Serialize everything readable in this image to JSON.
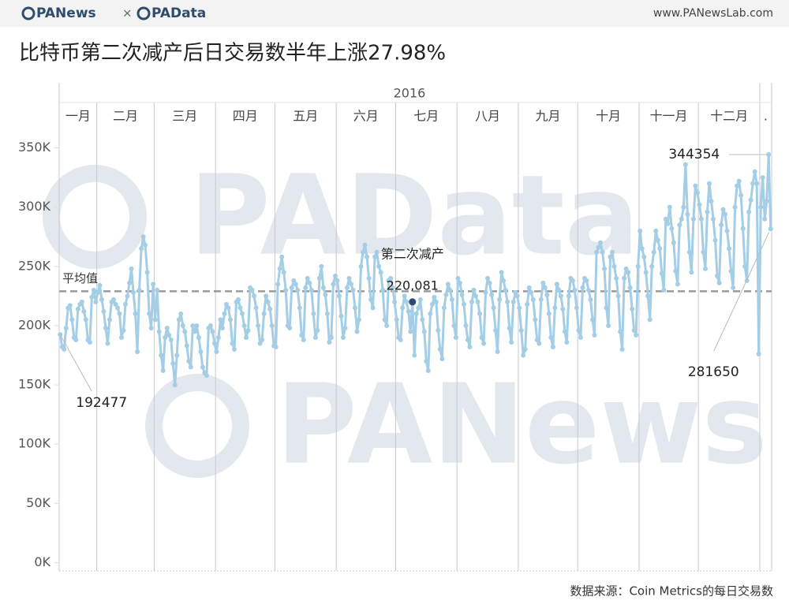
{
  "header": {
    "logo_left": "PANews",
    "separator": "×",
    "logo_right": "PAData",
    "url": "www.PANewsLab.com"
  },
  "chart_data": {
    "type": "line",
    "title": "比特币第二次减产后日交易数半年上涨27.98%",
    "year": "2016",
    "color": "#a4cde6",
    "ylim": [
      -7000,
      365000
    ],
    "yticks": [
      {
        "value": 0,
        "label": "0K"
      },
      {
        "value": 50000,
        "label": "50K"
      },
      {
        "value": 100000,
        "label": "100K"
      },
      {
        "value": 150000,
        "label": "150K"
      },
      {
        "value": 200000,
        "label": "200K"
      },
      {
        "value": 250000,
        "label": "250K"
      },
      {
        "value": 300000,
        "label": "300K"
      },
      {
        "value": 350000,
        "label": "350K"
      }
    ],
    "average": {
      "label": "平均值",
      "value": 229000,
      "color": "#9a9a9a"
    },
    "watermarks": [
      "PAData",
      "PANews"
    ],
    "months": [
      {
        "label": "一月",
        "values": [
          192477,
          182000,
          180000,
          198000,
          215000,
          217000,
          205000,
          190000,
          188000,
          214000,
          218000,
          220000,
          212000,
          205000,
          188000,
          186000,
          224000,
          230000,
          220000
        ],
        "value_labels": [
          "192477",
          null,
          null,
          null,
          null,
          null,
          null,
          null,
          null,
          null,
          null,
          null,
          null,
          null,
          null,
          null,
          null,
          null,
          null
        ]
      },
      {
        "label": "二月",
        "values": [
          228000,
          234000,
          222000,
          212000,
          198000,
          185000,
          205000,
          220000,
          222000,
          218000,
          215000,
          210000,
          190000,
          196000,
          218000,
          225000,
          236000,
          248000,
          228000,
          210000,
          178000,
          230000,
          265000,
          275000,
          268000,
          245000,
          210000,
          198000,
          235000
        ]
      },
      {
        "label": "三月",
        "values": [
          205000,
          230000,
          195000,
          175000,
          162000,
          190000,
          198000,
          192000,
          188000,
          168000,
          150000,
          175000,
          205000,
          210000,
          200000,
          195000,
          183000,
          170000,
          165000,
          200000,
          195000,
          200000,
          190000,
          178000,
          165000,
          160000,
          158000,
          198000,
          200000,
          195000,
          185000
        ]
      },
      {
        "label": "四月",
        "values": [
          178000,
          190000,
          205000,
          198000,
          210000,
          218000,
          215000,
          205000,
          185000,
          180000,
          220000,
          222000,
          215000,
          210000,
          200000,
          190000,
          196000,
          232000,
          230000,
          225000,
          215000,
          200000,
          185000,
          188000,
          210000,
          225000,
          220000,
          214000,
          200000,
          183000
        ]
      },
      {
        "label": "五月",
        "values": [
          182000,
          235000,
          248000,
          258000,
          245000,
          230000,
          200000,
          198000,
          232000,
          238000,
          235000,
          230000,
          215000,
          192000,
          188000,
          232000,
          240000,
          236000,
          230000,
          210000,
          190000,
          196000,
          240000,
          250000,
          232000,
          226000,
          210000,
          186000,
          190000,
          235000,
          242000
        ]
      },
      {
        "label": "六月",
        "values": [
          238000,
          225000,
          208000,
          190000,
          198000,
          232000,
          240000,
          235000,
          230000,
          215000,
          195000,
          205000,
          250000,
          262000,
          268000,
          258000,
          240000,
          222000,
          215000,
          258000,
          262000,
          250000,
          245000,
          230000,
          205000,
          200000,
          238000,
          240000,
          232000,
          220000
        ]
      },
      {
        "label": "七月",
        "annotation": "第二次减产",
        "annotation_color": "#2c4a72",
        "values": [
          205000,
          190000,
          188000,
          215000,
          225000,
          220000,
          212000,
          195000,
          220081,
          175000,
          210000,
          215000,
          222000,
          205000,
          195000,
          170000,
          162000,
          210000,
          218000,
          224000,
          220000,
          196000,
          180000,
          172000,
          215000,
          226000,
          235000,
          230000,
          222000,
          200000,
          190000
        ],
        "value_labels": [
          null,
          null,
          null,
          null,
          null,
          null,
          null,
          null,
          "220,081",
          null,
          null,
          null,
          null,
          null,
          null,
          null,
          null,
          null,
          null,
          null,
          null,
          null,
          null,
          null,
          null,
          null,
          null,
          null,
          null,
          null,
          null
        ]
      },
      {
        "label": "八月",
        "values": [
          240000,
          236000,
          226000,
          218000,
          200000,
          188000,
          182000,
          220000,
          230000,
          225000,
          220000,
          210000,
          190000,
          185000,
          228000,
          240000,
          236000,
          226000,
          215000,
          196000,
          178000,
          222000,
          245000,
          238000,
          230000,
          220000,
          198000,
          186000,
          220000,
          228000,
          225000
        ]
      },
      {
        "label": "九月",
        "values": [
          215000,
          196000,
          175000,
          180000,
          218000,
          232000,
          228000,
          222000,
          205000,
          188000,
          185000,
          222000,
          236000,
          232000,
          226000,
          210000,
          190000,
          182000,
          215000,
          235000,
          230000,
          225000,
          214000,
          195000,
          186000,
          225000,
          240000,
          238000,
          230000,
          215000
        ]
      },
      {
        "label": "十月",
        "values": [
          196000,
          190000,
          232000,
          240000,
          238000,
          230000,
          222000,
          205000,
          192000,
          262000,
          266000,
          270000,
          262000,
          248000,
          215000,
          200000,
          258000,
          262000,
          250000,
          240000,
          225000,
          195000,
          180000,
          240000,
          248000,
          245000,
          232000,
          214000,
          196000,
          192000,
          250000
        ]
      },
      {
        "label": "十一月",
        "values": [
          280000,
          265000,
          258000,
          245000,
          225000,
          205000,
          250000,
          262000,
          280000,
          272000,
          265000,
          244000,
          230000,
          290000,
          286000,
          300000,
          282000,
          270000,
          246000,
          235000,
          285000,
          290000,
          300000,
          336000,
          294000,
          262000,
          245000,
          290000,
          318000,
          312000
        ]
      },
      {
        "label": "十二月",
        "values": [
          302000,
          290000,
          262000,
          248000,
          296000,
          320000,
          305000,
          290000,
          272000,
          242000,
          236000,
          285000,
          298000,
          294000,
          280000,
          265000,
          246000,
          232000,
          300000,
          318000,
          322000,
          310000,
          282000,
          250000,
          238000,
          296000,
          306000,
          320000,
          330000,
          320000,
          176000
        ]
      },
      {
        "label": ".",
        "values": [
          300000,
          325000,
          290000,
          305000,
          344354,
          281650
        ],
        "value_labels": [
          null,
          null,
          null,
          null,
          "344354",
          "281650"
        ]
      }
    ]
  },
  "footer": {
    "source": "数据来源：Coin Metrics的每日交易数"
  }
}
